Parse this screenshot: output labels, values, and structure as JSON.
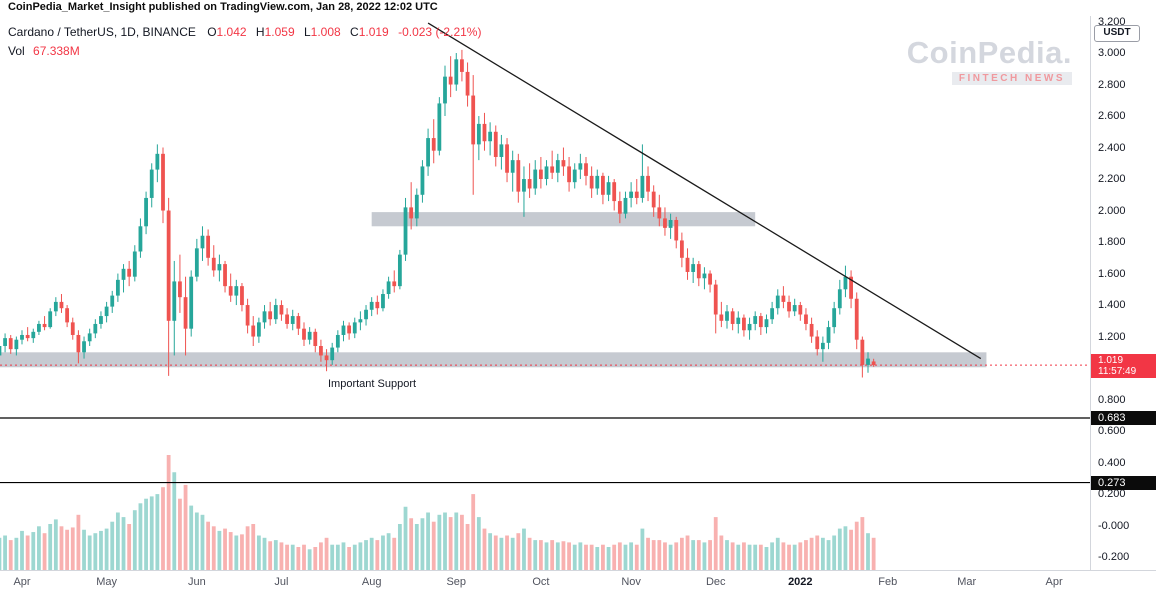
{
  "meta": {
    "publish_line": "CoinPedia_Market_Insight published on TradingView.com, Jan 28, 2022 12:02 UTC"
  },
  "header": {
    "symbol_title": "Cardano / TetherUS, 1D, BINANCE",
    "ohlc": {
      "o_label": "O",
      "o_value": "1.042",
      "h_label": "H",
      "h_value": "1.059",
      "l_label": "L",
      "l_value": "1.008",
      "c_label": "C",
      "c_value": "1.019",
      "change": "-0.023 (-2.21%)"
    },
    "volume_label": "Vol",
    "volume_value": "67.338M"
  },
  "watermark": {
    "line1": "CoinPedia.",
    "line2": "FINTECH NEWS"
  },
  "annotations": {
    "support_text": "Important Support"
  },
  "price_axis": {
    "unit_badge": "USDT",
    "ticks": [
      {
        "v": 3.2,
        "t": "3.200"
      },
      {
        "v": 3.0,
        "t": "3.000"
      },
      {
        "v": 2.8,
        "t": "2.800"
      },
      {
        "v": 2.6,
        "t": "2.600"
      },
      {
        "v": 2.4,
        "t": "2.400"
      },
      {
        "v": 2.2,
        "t": "2.200"
      },
      {
        "v": 2.0,
        "t": "2.000"
      },
      {
        "v": 1.8,
        "t": "1.800"
      },
      {
        "v": 1.6,
        "t": "1.600"
      },
      {
        "v": 1.4,
        "t": "1.400"
      },
      {
        "v": 1.2,
        "t": "1.200"
      },
      {
        "v": 0.8,
        "t": "0.800"
      },
      {
        "v": 0.6,
        "t": "0.600"
      },
      {
        "v": 0.4,
        "t": "0.400"
      },
      {
        "v": 0.2,
        "t": "0.200"
      },
      {
        "v": 0.0,
        "t": "-0.000"
      },
      {
        "v": -0.2,
        "t": "-0.200"
      }
    ],
    "last_price": {
      "label": "1.019",
      "countdown": "11:57:49",
      "color": "#f23645"
    }
  },
  "time_axis": {
    "months": [
      {
        "label": "Apr",
        "index": 0
      },
      {
        "label": "May",
        "index": 15
      },
      {
        "label": "Jun",
        "index": 31
      },
      {
        "label": "Jul",
        "index": 46
      },
      {
        "label": "Aug",
        "index": 62
      },
      {
        "label": "Sep",
        "index": 77
      },
      {
        "label": "Oct",
        "index": 92
      },
      {
        "label": "Nov",
        "index": 108
      },
      {
        "label": "Dec",
        "index": 123
      },
      {
        "label": "2022",
        "index": 138,
        "bold": true
      },
      {
        "label": "Feb",
        "index": 153.5
      },
      {
        "label": "Mar",
        "index": 167.5
      },
      {
        "label": "Apr",
        "index": 183
      }
    ]
  },
  "chart_data": {
    "type": "candlestick+volume",
    "title": "Cardano / TetherUS, 1D, BINANCE",
    "ylabel": "USDT",
    "timeframe": "1D",
    "candle_span_days": 2,
    "price_range": [
      -0.282,
      3.235
    ],
    "first_index": -4,
    "last_price": 1.019,
    "colors": {
      "up": "#26a69a",
      "down": "#ef5350",
      "vol_up": "rgba(38,166,154,0.45)",
      "vol_down": "rgba(239,83,80,0.45)",
      "last_line": "#f23645",
      "zone": "#c6cad1",
      "trendline": "#1a1a1a",
      "level": "#000000"
    },
    "zones": [
      {
        "name": "resistance-zone",
        "from": 62,
        "to": 130,
        "price_top": 1.99,
        "price_bottom": 1.9
      },
      {
        "name": "support-zone",
        "from": -4,
        "to": 171,
        "price_top": 1.1,
        "price_bottom": 1.005
      }
    ],
    "trendline": {
      "from_index": 72,
      "from_price": 3.19,
      "to_index": 170,
      "to_price": 1.06
    },
    "levels": [
      {
        "price": 0.683,
        "label": "0.683"
      },
      {
        "price": 0.273,
        "label": "0.273"
      }
    ],
    "candles": [
      [
        1.08,
        1.16,
        1.05,
        1.14,
        0.28
      ],
      [
        1.14,
        1.22,
        1.1,
        1.19,
        0.3
      ],
      [
        1.19,
        1.21,
        1.09,
        1.12,
        0.26
      ],
      [
        1.12,
        1.2,
        1.08,
        1.18,
        0.28
      ],
      [
        1.18,
        1.24,
        1.15,
        1.21,
        0.34
      ],
      [
        1.21,
        1.26,
        1.17,
        1.19,
        0.3
      ],
      [
        1.19,
        1.25,
        1.16,
        1.23,
        0.33
      ],
      [
        1.23,
        1.3,
        1.21,
        1.28,
        0.38
      ],
      [
        1.28,
        1.33,
        1.24,
        1.26,
        0.32
      ],
      [
        1.26,
        1.38,
        1.25,
        1.36,
        0.4
      ],
      [
        1.36,
        1.45,
        1.33,
        1.42,
        0.44
      ],
      [
        1.42,
        1.47,
        1.35,
        1.38,
        0.38
      ],
      [
        1.38,
        1.4,
        1.26,
        1.29,
        0.35
      ],
      [
        1.29,
        1.32,
        1.18,
        1.21,
        0.37
      ],
      [
        1.21,
        1.24,
        1.03,
        1.1,
        0.48
      ],
      [
        1.1,
        1.2,
        1.06,
        1.17,
        0.35
      ],
      [
        1.17,
        1.25,
        1.14,
        1.22,
        0.3
      ],
      [
        1.22,
        1.31,
        1.19,
        1.28,
        0.32
      ],
      [
        1.28,
        1.36,
        1.25,
        1.33,
        0.34
      ],
      [
        1.33,
        1.42,
        1.29,
        1.39,
        0.36
      ],
      [
        1.39,
        1.49,
        1.35,
        1.46,
        0.42
      ],
      [
        1.46,
        1.6,
        1.42,
        1.56,
        0.5
      ],
      [
        1.56,
        1.66,
        1.48,
        1.63,
        0.46
      ],
      [
        1.63,
        1.68,
        1.52,
        1.58,
        0.4
      ],
      [
        1.58,
        1.78,
        1.55,
        1.74,
        0.52
      ],
      [
        1.74,
        1.95,
        1.7,
        1.9,
        0.58
      ],
      [
        1.9,
        2.12,
        1.85,
        2.08,
        0.62
      ],
      [
        2.08,
        2.3,
        2.02,
        2.26,
        0.64
      ],
      [
        2.26,
        2.42,
        2.18,
        2.36,
        0.66
      ],
      [
        2.36,
        2.4,
        1.92,
        2.0,
        0.72
      ],
      [
        2.0,
        2.08,
        0.95,
        1.3,
        1.0
      ],
      [
        1.3,
        1.68,
        1.08,
        1.55,
        0.85
      ],
      [
        1.55,
        1.72,
        1.35,
        1.45,
        0.62
      ],
      [
        1.45,
        1.58,
        1.08,
        1.25,
        0.74
      ],
      [
        1.25,
        1.62,
        1.2,
        1.58,
        0.56
      ],
      [
        1.58,
        1.82,
        1.55,
        1.76,
        0.5
      ],
      [
        1.76,
        1.9,
        1.68,
        1.84,
        0.48
      ],
      [
        1.84,
        1.88,
        1.65,
        1.7,
        0.42
      ],
      [
        1.7,
        1.78,
        1.58,
        1.62,
        0.38
      ],
      [
        1.62,
        1.72,
        1.55,
        1.66,
        0.34
      ],
      [
        1.66,
        1.68,
        1.48,
        1.52,
        0.36
      ],
      [
        1.52,
        1.6,
        1.42,
        1.46,
        0.33
      ],
      [
        1.46,
        1.56,
        1.4,
        1.52,
        0.3
      ],
      [
        1.52,
        1.54,
        1.36,
        1.4,
        0.31
      ],
      [
        1.4,
        1.44,
        1.22,
        1.27,
        0.38
      ],
      [
        1.27,
        1.33,
        1.14,
        1.2,
        0.4
      ],
      [
        1.2,
        1.32,
        1.16,
        1.29,
        0.3
      ],
      [
        1.29,
        1.4,
        1.25,
        1.36,
        0.28
      ],
      [
        1.36,
        1.42,
        1.27,
        1.31,
        0.25
      ],
      [
        1.31,
        1.44,
        1.28,
        1.4,
        0.26
      ],
      [
        1.4,
        1.43,
        1.3,
        1.34,
        0.24
      ],
      [
        1.34,
        1.38,
        1.25,
        1.28,
        0.22
      ],
      [
        1.28,
        1.37,
        1.24,
        1.33,
        0.22
      ],
      [
        1.33,
        1.35,
        1.21,
        1.25,
        0.2
      ],
      [
        1.25,
        1.29,
        1.14,
        1.18,
        0.22
      ],
      [
        1.18,
        1.26,
        1.15,
        1.23,
        0.18
      ],
      [
        1.23,
        1.25,
        1.1,
        1.14,
        0.2
      ],
      [
        1.14,
        1.18,
        1.04,
        1.08,
        0.24
      ],
      [
        1.08,
        1.12,
        0.98,
        1.05,
        0.28
      ],
      [
        1.05,
        1.16,
        1.02,
        1.13,
        0.22
      ],
      [
        1.13,
        1.24,
        1.1,
        1.21,
        0.22
      ],
      [
        1.21,
        1.3,
        1.17,
        1.27,
        0.24
      ],
      [
        1.27,
        1.29,
        1.18,
        1.22,
        0.2
      ],
      [
        1.22,
        1.32,
        1.19,
        1.29,
        0.22
      ],
      [
        1.29,
        1.36,
        1.24,
        1.31,
        0.24
      ],
      [
        1.31,
        1.4,
        1.27,
        1.37,
        0.26
      ],
      [
        1.37,
        1.45,
        1.33,
        1.42,
        0.28
      ],
      [
        1.42,
        1.46,
        1.34,
        1.38,
        0.26
      ],
      [
        1.38,
        1.5,
        1.36,
        1.47,
        0.3
      ],
      [
        1.47,
        1.58,
        1.44,
        1.55,
        0.32
      ],
      [
        1.55,
        1.62,
        1.48,
        1.52,
        0.28
      ],
      [
        1.52,
        1.75,
        1.5,
        1.72,
        0.4
      ],
      [
        1.72,
        2.08,
        1.68,
        2.02,
        0.55
      ],
      [
        2.02,
        2.18,
        1.88,
        1.95,
        0.45
      ],
      [
        1.95,
        2.14,
        1.9,
        2.1,
        0.4
      ],
      [
        2.1,
        2.32,
        2.05,
        2.28,
        0.45
      ],
      [
        2.28,
        2.52,
        2.22,
        2.46,
        0.5
      ],
      [
        2.46,
        2.58,
        2.3,
        2.38,
        0.42
      ],
      [
        2.38,
        2.72,
        2.35,
        2.68,
        0.48
      ],
      [
        2.68,
        2.92,
        2.6,
        2.85,
        0.5
      ],
      [
        2.85,
        2.98,
        2.72,
        2.8,
        0.46
      ],
      [
        2.8,
        3.0,
        2.76,
        2.96,
        0.5
      ],
      [
        2.96,
        3.02,
        2.82,
        2.88,
        0.48
      ],
      [
        2.88,
        2.94,
        2.66,
        2.73,
        0.4
      ],
      [
        2.73,
        2.86,
        2.1,
        2.42,
        0.66
      ],
      [
        2.42,
        2.6,
        2.32,
        2.55,
        0.46
      ],
      [
        2.55,
        2.62,
        2.38,
        2.44,
        0.36
      ],
      [
        2.44,
        2.56,
        2.35,
        2.5,
        0.32
      ],
      [
        2.5,
        2.54,
        2.28,
        2.34,
        0.3
      ],
      [
        2.34,
        2.48,
        2.26,
        2.42,
        0.28
      ],
      [
        2.42,
        2.46,
        2.18,
        2.24,
        0.3
      ],
      [
        2.24,
        2.38,
        2.12,
        2.32,
        0.28
      ],
      [
        2.32,
        2.36,
        2.05,
        2.12,
        0.32
      ],
      [
        2.12,
        2.28,
        1.96,
        2.2,
        0.36
      ],
      [
        2.2,
        2.3,
        2.08,
        2.14,
        0.28
      ],
      [
        2.14,
        2.32,
        2.1,
        2.26,
        0.26
      ],
      [
        2.26,
        2.34,
        2.14,
        2.2,
        0.26
      ],
      [
        2.2,
        2.32,
        2.16,
        2.28,
        0.24
      ],
      [
        2.28,
        2.38,
        2.2,
        2.24,
        0.26
      ],
      [
        2.24,
        2.36,
        2.18,
        2.32,
        0.24
      ],
      [
        2.32,
        2.4,
        2.22,
        2.28,
        0.25
      ],
      [
        2.28,
        2.34,
        2.12,
        2.18,
        0.24
      ],
      [
        2.18,
        2.3,
        2.14,
        2.26,
        0.22
      ],
      [
        2.26,
        2.36,
        2.2,
        2.3,
        0.24
      ],
      [
        2.3,
        2.34,
        2.16,
        2.22,
        0.22
      ],
      [
        2.22,
        2.28,
        2.08,
        2.14,
        0.22
      ],
      [
        2.14,
        2.26,
        2.1,
        2.22,
        0.2
      ],
      [
        2.22,
        2.24,
        2.04,
        2.1,
        0.22
      ],
      [
        2.1,
        2.22,
        2.06,
        2.18,
        0.2
      ],
      [
        2.18,
        2.2,
        2.0,
        2.06,
        0.22
      ],
      [
        2.06,
        2.12,
        1.92,
        1.98,
        0.24
      ],
      [
        1.98,
        2.12,
        1.95,
        2.08,
        0.22
      ],
      [
        2.08,
        2.18,
        2.02,
        2.12,
        0.24
      ],
      [
        2.12,
        2.2,
        2.04,
        2.08,
        0.22
      ],
      [
        2.08,
        2.42,
        2.05,
        2.22,
        0.36
      ],
      [
        2.22,
        2.28,
        2.06,
        2.12,
        0.28
      ],
      [
        2.12,
        2.16,
        1.96,
        2.02,
        0.26
      ],
      [
        2.02,
        2.1,
        1.9,
        1.95,
        0.26
      ],
      [
        1.95,
        2.02,
        1.84,
        1.89,
        0.24
      ],
      [
        1.89,
        1.98,
        1.82,
        1.94,
        0.22
      ],
      [
        1.94,
        1.96,
        1.76,
        1.81,
        0.24
      ],
      [
        1.81,
        1.86,
        1.64,
        1.7,
        0.28
      ],
      [
        1.7,
        1.76,
        1.56,
        1.61,
        0.3
      ],
      [
        1.61,
        1.7,
        1.54,
        1.66,
        0.26
      ],
      [
        1.66,
        1.68,
        1.52,
        1.57,
        0.26
      ],
      [
        1.57,
        1.64,
        1.5,
        1.6,
        0.24
      ],
      [
        1.6,
        1.62,
        1.48,
        1.53,
        0.26
      ],
      [
        1.53,
        1.56,
        1.22,
        1.34,
        0.46
      ],
      [
        1.34,
        1.42,
        1.26,
        1.3,
        0.3
      ],
      [
        1.3,
        1.4,
        1.25,
        1.36,
        0.26
      ],
      [
        1.36,
        1.38,
        1.24,
        1.28,
        0.24
      ],
      [
        1.28,
        1.36,
        1.22,
        1.32,
        0.22
      ],
      [
        1.32,
        1.34,
        1.2,
        1.24,
        0.24
      ],
      [
        1.24,
        1.32,
        1.18,
        1.28,
        0.22
      ],
      [
        1.28,
        1.36,
        1.24,
        1.33,
        0.22
      ],
      [
        1.33,
        1.35,
        1.21,
        1.26,
        0.22
      ],
      [
        1.26,
        1.34,
        1.22,
        1.31,
        0.2
      ],
      [
        1.31,
        1.42,
        1.28,
        1.38,
        0.24
      ],
      [
        1.38,
        1.5,
        1.34,
        1.46,
        0.28
      ],
      [
        1.46,
        1.52,
        1.38,
        1.42,
        0.24
      ],
      [
        1.42,
        1.46,
        1.32,
        1.36,
        0.22
      ],
      [
        1.36,
        1.44,
        1.33,
        1.4,
        0.22
      ],
      [
        1.4,
        1.42,
        1.3,
        1.34,
        0.24
      ],
      [
        1.34,
        1.38,
        1.24,
        1.28,
        0.26
      ],
      [
        1.28,
        1.32,
        1.16,
        1.2,
        0.28
      ],
      [
        1.2,
        1.24,
        1.08,
        1.12,
        0.3
      ],
      [
        1.12,
        1.2,
        1.04,
        1.16,
        0.28
      ],
      [
        1.16,
        1.3,
        1.12,
        1.26,
        0.26
      ],
      [
        1.26,
        1.42,
        1.22,
        1.38,
        0.3
      ],
      [
        1.38,
        1.56,
        1.34,
        1.5,
        0.36
      ],
      [
        1.5,
        1.65,
        1.45,
        1.58,
        0.38
      ],
      [
        1.58,
        1.62,
        1.38,
        1.44,
        0.35
      ],
      [
        1.44,
        1.48,
        1.12,
        1.18,
        0.42
      ],
      [
        1.18,
        1.2,
        0.94,
        1.02,
        0.46
      ],
      [
        1.02,
        1.1,
        0.97,
        1.06,
        0.32
      ],
      [
        1.042,
        1.059,
        1.008,
        1.019,
        0.28
      ]
    ]
  }
}
